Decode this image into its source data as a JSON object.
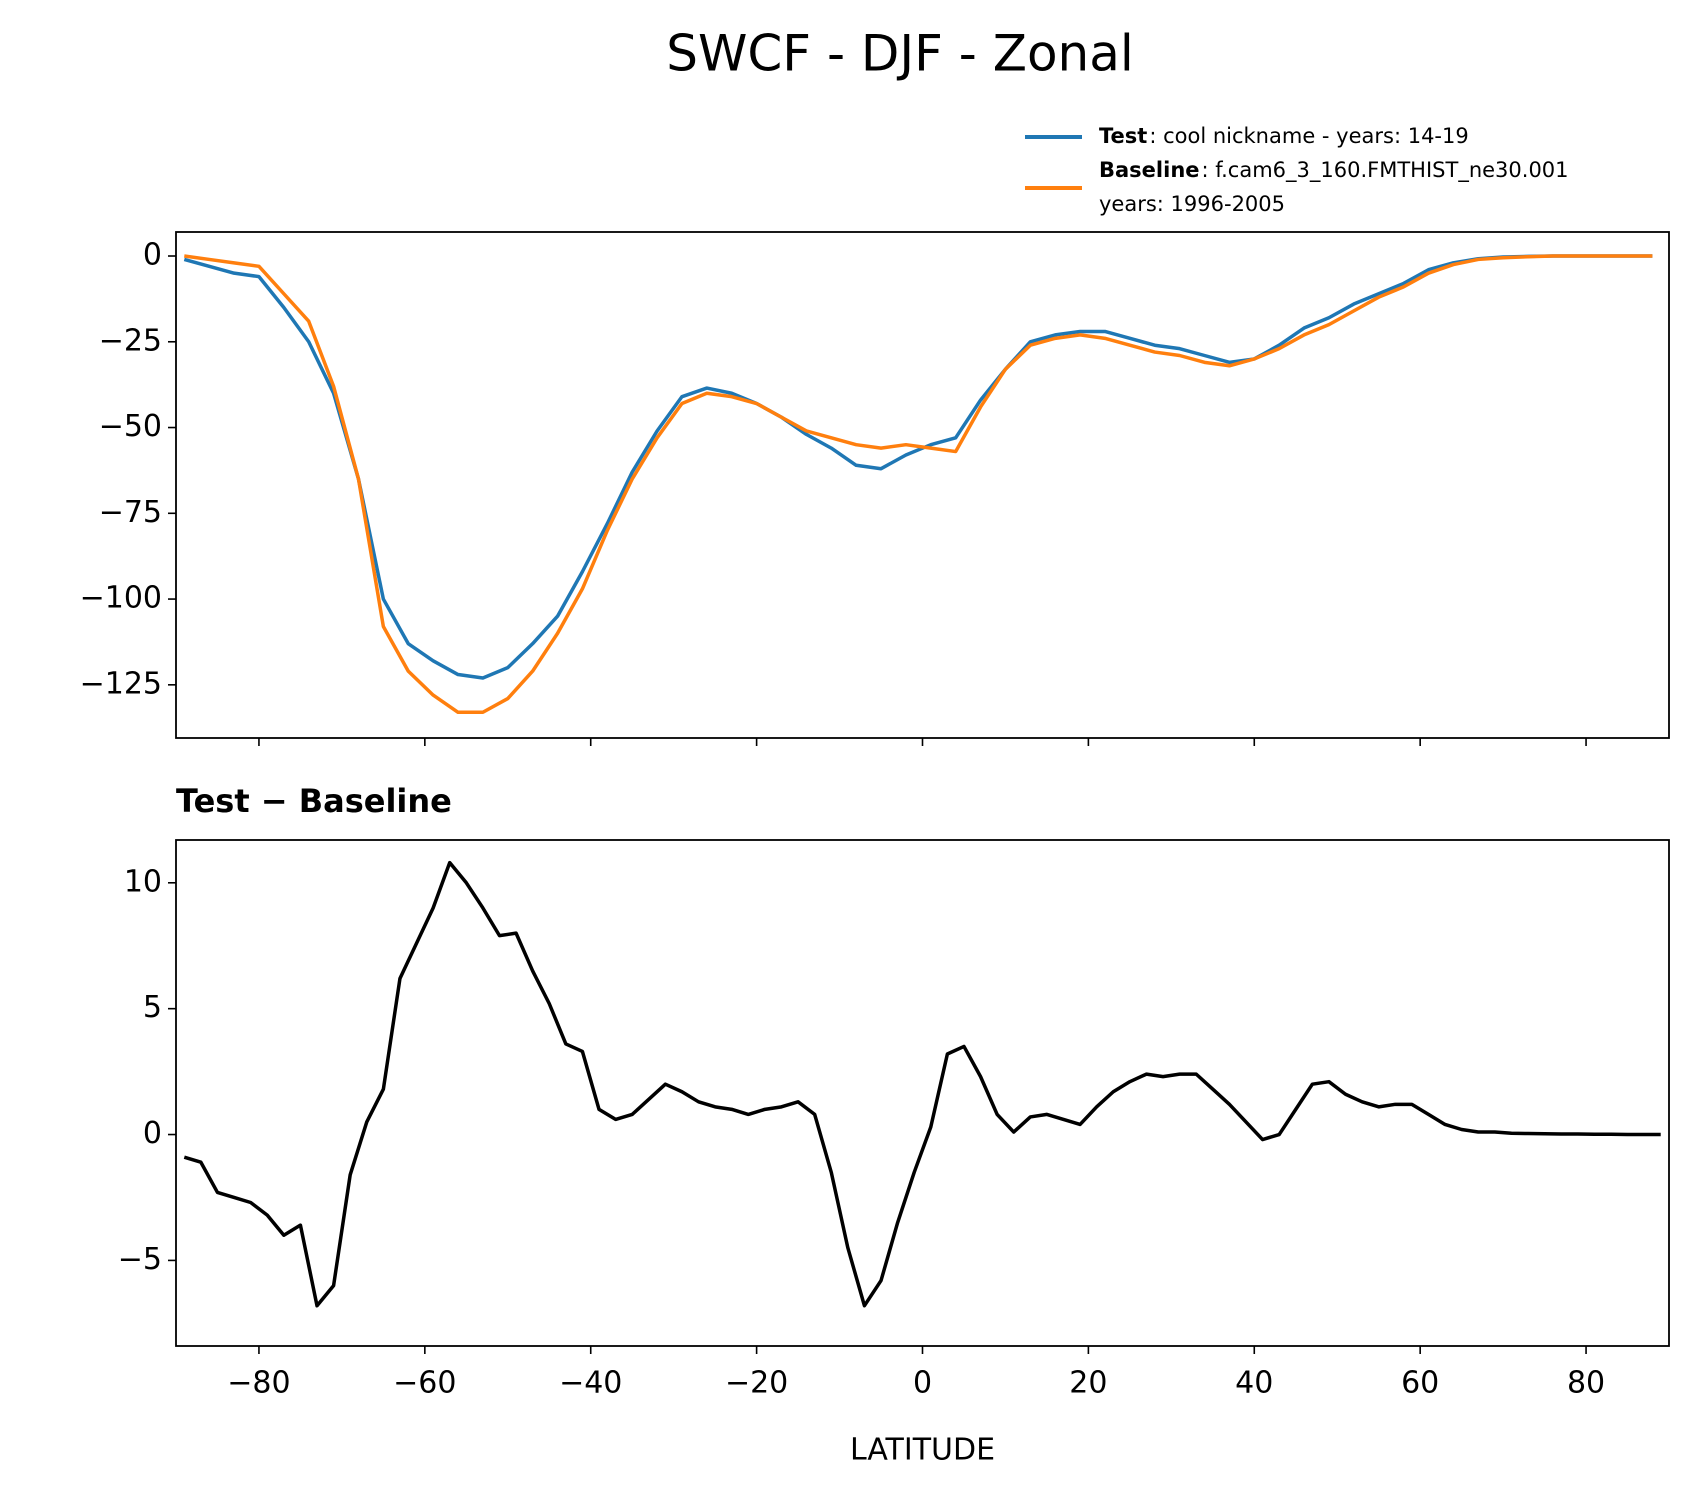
{
  "title": "SWCF - DJF - Zonal",
  "chart_data": [
    {
      "type": "line",
      "x": [
        -89,
        -86,
        -83,
        -80,
        -77,
        -74,
        -71,
        -68,
        -65,
        -62,
        -59,
        -56,
        -53,
        -50,
        -47,
        -44,
        -41,
        -38,
        -35,
        -32,
        -29,
        -26,
        -23,
        -20,
        -17,
        -14,
        -11,
        -8,
        -5,
        -2,
        1,
        4,
        7,
        10,
        13,
        16,
        19,
        22,
        25,
        28,
        31,
        34,
        37,
        40,
        43,
        46,
        49,
        52,
        55,
        58,
        61,
        64,
        67,
        70,
        73,
        76,
        79,
        82,
        85,
        88
      ],
      "series": [
        {
          "name": "Test",
          "label": [
            ": cool nickname - years: 14-19"
          ],
          "color": "#1f77b4",
          "values": [
            -1,
            -3,
            -5,
            -6,
            -15,
            -25,
            -40,
            -65,
            -100,
            -113,
            -118,
            -122,
            -123,
            -120,
            -113,
            -105,
            -92,
            -78,
            -63,
            -51,
            -41,
            -38.5,
            -40,
            -43,
            -47,
            -52,
            -56,
            -61,
            -62,
            -58,
            -55,
            -53,
            -42,
            -33,
            -25,
            -23,
            -22,
            -22,
            -24,
            -26,
            -27,
            -29,
            -31,
            -30,
            -26,
            -21,
            -18,
            -14,
            -11,
            -8,
            -4,
            -2,
            -0.8,
            -0.3,
            -0.1,
            0,
            0,
            0,
            0,
            0
          ]
        },
        {
          "name": "Baseline",
          "label": [
            ": f.cam6_3_160.FMTHIST_ne30.001",
            "years: 1996-2005"
          ],
          "color": "#ff7f0e",
          "values": [
            0,
            -1,
            -2,
            -3,
            -11,
            -19,
            -38,
            -65,
            -108,
            -121,
            -128,
            -133,
            -133,
            -129,
            -121,
            -110,
            -97,
            -80,
            -65,
            -53,
            -43,
            -40,
            -41,
            -43,
            -47,
            -51,
            -53,
            -55,
            -56,
            -55,
            -56,
            -57,
            -44,
            -33,
            -26,
            -24,
            -23,
            -24,
            -26,
            -28,
            -29,
            -31,
            -32,
            -30,
            -27,
            -23,
            -20,
            -16,
            -12,
            -9,
            -5,
            -2.5,
            -1,
            -0.5,
            -0.2,
            0,
            0,
            0,
            0,
            0
          ]
        }
      ],
      "xlim": [
        -90,
        90
      ],
      "xticks": [
        -80,
        -60,
        -40,
        -20,
        0,
        20,
        40,
        60,
        80
      ],
      "ylim": [
        -140.5,
        7
      ],
      "yticks": [
        0,
        {
          "value": -25,
          "label": "−25"
        },
        {
          "value": -50,
          "label": "−50"
        },
        {
          "value": -75,
          "label": "−75"
        },
        {
          "value": -100,
          "label": "−100"
        },
        {
          "value": -125,
          "label": "−125"
        }
      ],
      "legend": "upper right"
    },
    {
      "type": "line",
      "title": "Test − Baseline",
      "xlabel": "LATITUDE",
      "x": [
        -89,
        -87,
        -85,
        -83,
        -81,
        -79,
        -77,
        -75,
        -73,
        -71,
        -69,
        -67,
        -65,
        -63,
        -61,
        -59,
        -57,
        -55,
        -53,
        -51,
        -49,
        -47,
        -45,
        -43,
        -41,
        -39,
        -37,
        -35,
        -33,
        -31,
        -29,
        -27,
        -25,
        -23,
        -21,
        -19,
        -17,
        -15,
        -13,
        -11,
        -9,
        -7,
        -5,
        -3,
        -1,
        1,
        3,
        5,
        7,
        9,
        11,
        13,
        15,
        17,
        19,
        21,
        23,
        25,
        27,
        29,
        31,
        33,
        35,
        37,
        39,
        41,
        43,
        45,
        47,
        49,
        51,
        53,
        55,
        57,
        59,
        61,
        63,
        65,
        67,
        69,
        71,
        73,
        75,
        77,
        79,
        81,
        83,
        85,
        87,
        89
      ],
      "series": [
        {
          "name": "Test − Baseline",
          "color": "#000000",
          "values": [
            -0.9,
            -1.1,
            -2.3,
            -2.5,
            -2.7,
            -3.2,
            -4.0,
            -3.6,
            -6.8,
            -6.0,
            -1.6,
            0.5,
            1.8,
            6.2,
            7.6,
            9.0,
            10.8,
            10.0,
            9.0,
            7.9,
            8.0,
            6.5,
            5.2,
            3.6,
            3.3,
            1.0,
            0.6,
            0.8,
            1.4,
            2.0,
            1.7,
            1.3,
            1.1,
            1.0,
            0.8,
            1.0,
            1.1,
            1.3,
            0.8,
            -1.5,
            -4.5,
            -6.8,
            -5.8,
            -3.5,
            -1.5,
            0.3,
            3.2,
            3.5,
            2.3,
            0.8,
            0.1,
            0.7,
            0.8,
            0.6,
            0.4,
            1.1,
            1.7,
            2.1,
            2.4,
            2.3,
            2.4,
            2.4,
            1.8,
            1.2,
            0.5,
            -0.2,
            0.0,
            1.0,
            2.0,
            2.1,
            1.6,
            1.3,
            1.1,
            1.2,
            1.2,
            0.8,
            0.4,
            0.2,
            0.1,
            0.1,
            0.05,
            0.04,
            0.03,
            0.02,
            0.02,
            0.01,
            0.01,
            0,
            0,
            0
          ]
        }
      ],
      "xlim": [
        -90,
        90
      ],
      "xticks": [
        {
          "value": -80,
          "label": "−80"
        },
        {
          "value": -60,
          "label": "−60"
        },
        {
          "value": -40,
          "label": "−40"
        },
        {
          "value": -20,
          "label": "−20"
        },
        0,
        20,
        40,
        60,
        80
      ],
      "ylim": [
        -8.4,
        11.7
      ],
      "yticks": [
        10,
        5,
        0,
        {
          "value": -5,
          "label": "−5"
        }
      ]
    }
  ]
}
